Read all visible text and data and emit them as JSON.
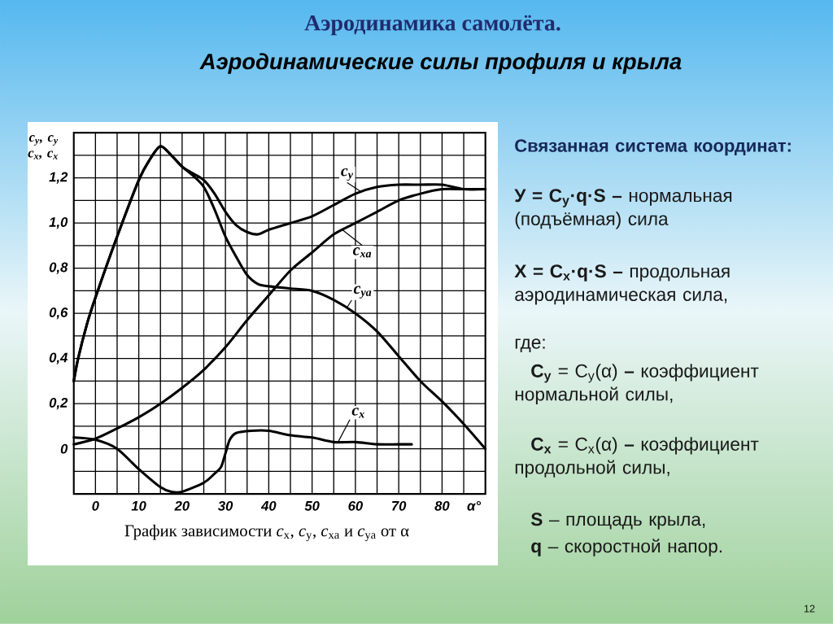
{
  "chart_data": {
    "type": "line",
    "title": "Аэродинамика  самолёта.",
    "subtitle": "Аэродинамические силы профиля и крыла",
    "xlabel": "α°",
    "ylabel": "c$_{y}$, c$_{y}$ c$_{x}$, c$_{x}$",
    "xlim": [
      -5,
      90
    ],
    "ylim": [
      -0.2,
      1.4
    ],
    "xticks": [
      0,
      {
        "value": 5,
        "label": null
      },
      10,
      {
        "value": 15,
        "label": null
      },
      20,
      {
        "value": 25,
        "label": null
      },
      30,
      {
        "value": 35,
        "label": null
      },
      40,
      {
        "value": 45,
        "label": null
      },
      50,
      {
        "value": 55,
        "label": null
      },
      60,
      {
        "value": 65,
        "label": null
      },
      70,
      {
        "value": 75,
        "label": null
      },
      80,
      {
        "value": 85,
        "label": null
      }
    ],
    "yticks": [
      {
        "value": -0.1,
        "label": null
      },
      0,
      {
        "value": 0.1,
        "label": null
      },
      {
        "value": 0.2,
        "label": "0,2"
      },
      {
        "value": 0.3,
        "label": null
      },
      {
        "value": 0.4,
        "label": "0,4"
      },
      {
        "value": 0.5,
        "label": null
      },
      {
        "value": 0.6,
        "label": "0,6"
      },
      {
        "value": 0.7,
        "label": null
      },
      {
        "value": 0.8,
        "label": "0,8"
      },
      {
        "value": 0.9,
        "label": null
      },
      {
        "value": 1.0,
        "label": "1,0"
      },
      {
        "value": 1.1,
        "label": null
      },
      {
        "value": 1.2,
        "label": "1,2"
      },
      {
        "value": 1.3,
        "label": null
      }
    ],
    "grid": true,
    "marker": "none",
    "line_style": "solid",
    "series": [
      {
        "name": "c$_{y}$",
        "color": "#000000",
        "x": [
          -5,
          -4,
          -2,
          0,
          5,
          10,
          12.5,
          15,
          17.5,
          20,
          22.5,
          25,
          27.5,
          30,
          32.5,
          35,
          37.5,
          40,
          45,
          50,
          55,
          60,
          65,
          70,
          75,
          80,
          85,
          90
        ],
        "values": [
          0.3,
          0.4,
          0.55,
          0.67,
          0.94,
          1.19,
          1.28,
          1.34,
          1.3,
          1.25,
          1.22,
          1.19,
          1.13,
          1.05,
          0.99,
          0.96,
          0.95,
          0.97,
          1.0,
          1.03,
          1.08,
          1.13,
          1.16,
          1.17,
          1.17,
          1.17,
          1.15,
          1.15
        ]
      },
      {
        "name": "c$_{xa}$",
        "color": "#000000",
        "x": [
          -5,
          0,
          5,
          10,
          15,
          20,
          25,
          30,
          35,
          40,
          45,
          50,
          55,
          60,
          65,
          70,
          75,
          80,
          85,
          90
        ],
        "values": [
          0.02,
          0.045,
          0.09,
          0.14,
          0.2,
          0.27,
          0.35,
          0.45,
          0.57,
          0.68,
          0.79,
          0.87,
          0.95,
          1.0,
          1.05,
          1.1,
          1.13,
          1.15,
          1.15,
          1.15
        ]
      },
      {
        "name": "c$_{ya}$",
        "color": "#000000",
        "x": [
          -5,
          -4,
          -2,
          0,
          5,
          10,
          12.5,
          15,
          17.5,
          20,
          22.5,
          25,
          27.5,
          30,
          32.5,
          35,
          37.5,
          40,
          45,
          50,
          55,
          60,
          65,
          70,
          75,
          80,
          85,
          90
        ],
        "values": [
          0.3,
          0.4,
          0.55,
          0.67,
          0.94,
          1.19,
          1.28,
          1.34,
          1.3,
          1.25,
          1.21,
          1.16,
          1.06,
          0.94,
          0.85,
          0.77,
          0.73,
          0.72,
          0.71,
          0.7,
          0.66,
          0.6,
          0.52,
          0.41,
          0.3,
          0.21,
          0.11,
          0.0
        ]
      },
      {
        "name": "c$_{x}$",
        "color": "#000000",
        "x": [
          -5,
          0,
          5,
          10,
          15,
          17.5,
          20,
          25,
          27.5,
          29,
          30,
          31,
          32.5,
          36,
          40,
          45,
          50,
          55,
          60,
          65,
          70,
          73
        ],
        "values": [
          0.05,
          0.04,
          0.0,
          -0.09,
          -0.17,
          -0.19,
          -0.19,
          -0.15,
          -0.11,
          -0.08,
          -0.02,
          0.04,
          0.07,
          0.08,
          0.08,
          0.06,
          0.05,
          0.03,
          0.03,
          0.02,
          0.02,
          0.02
        ]
      }
    ],
    "annotations": [
      "График зависимости *c*$_{x}$, *c*$_{y}$, *c*$_{xa}$ и *c*$_{ya}$ от α",
      "Связанная система координат:",
      "**У = C$_{y}$·q·S –** нормальная (подъёмная) сила",
      "**X = C$_{x}$·q·S –** продольная аэродинамическая сила,",
      "где:",
      "**C$_{y}$** = C$_{y}$(α) **–** коэффициент нормальной силы,",
      "**C$_{x}$** = C$_{x}$(α) **–** коэффициент продольной силы,",
      "**S** – площадь крыла,",
      "**q** – скоростной напор.",
      "12"
    ]
  }
}
